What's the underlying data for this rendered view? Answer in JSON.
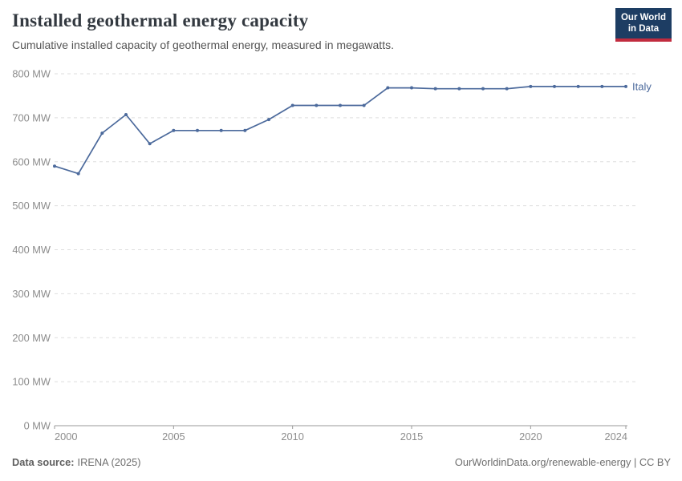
{
  "header": {
    "title": "Installed geothermal energy capacity",
    "subtitle": "Cumulative installed capacity of geothermal energy, measured in megawatts.",
    "logo": {
      "line1": "Our World",
      "line2": "in Data",
      "bg_color": "#1d3d63",
      "stripe_color": "#c12b3e",
      "text_color": "#ffffff"
    }
  },
  "chart_data": {
    "type": "line",
    "title": "Installed geothermal energy capacity",
    "subtitle": "Cumulative installed capacity of geothermal energy, measured in megawatts.",
    "xlabel": "",
    "ylabel": "",
    "xlim": [
      2000,
      2024
    ],
    "ylim": [
      0,
      800
    ],
    "grid": "horizontal-dashed",
    "legend_position": "end-of-line-label",
    "ytick_suffix": " MW",
    "yticks": [
      {
        "value": 0,
        "label": "0 MW"
      },
      {
        "value": 100,
        "label": "100 MW"
      },
      {
        "value": 200,
        "label": "200 MW"
      },
      {
        "value": 300,
        "label": "300 MW"
      },
      {
        "value": 400,
        "label": "400 MW"
      },
      {
        "value": 500,
        "label": "500 MW"
      },
      {
        "value": 600,
        "label": "600 MW"
      },
      {
        "value": 700,
        "label": "700 MW"
      },
      {
        "value": 800,
        "label": "800 MW"
      }
    ],
    "xticks": [
      {
        "value": 2000,
        "label": "2000"
      },
      {
        "value": 2005,
        "label": "2005"
      },
      {
        "value": 2010,
        "label": "2010"
      },
      {
        "value": 2015,
        "label": "2015"
      },
      {
        "value": 2020,
        "label": "2020"
      },
      {
        "value": 2024,
        "label": "2024"
      }
    ],
    "series": [
      {
        "name": "Italy",
        "color": "#4C6A9C",
        "x": [
          2000,
          2001,
          2002,
          2003,
          2004,
          2005,
          2006,
          2007,
          2008,
          2009,
          2010,
          2011,
          2012,
          2013,
          2014,
          2015,
          2016,
          2017,
          2018,
          2019,
          2020,
          2021,
          2022,
          2023,
          2024
        ],
        "values": [
          590,
          573,
          665,
          707,
          641,
          671,
          671,
          671,
          671,
          696,
          728,
          728,
          728,
          728,
          768,
          768,
          766,
          766,
          766,
          766,
          771,
          771,
          771,
          771,
          771
        ]
      }
    ]
  },
  "footer": {
    "source_label": "Data source:",
    "source_value": "IRENA (2025)",
    "url": "OurWorldinData.org/renewable-energy",
    "separator": " | ",
    "license": "CC BY"
  },
  "colors": {
    "grid": "#dedede",
    "axis": "#999999",
    "tick_text": "#8c8c8c",
    "line": "#4C6A9C"
  }
}
